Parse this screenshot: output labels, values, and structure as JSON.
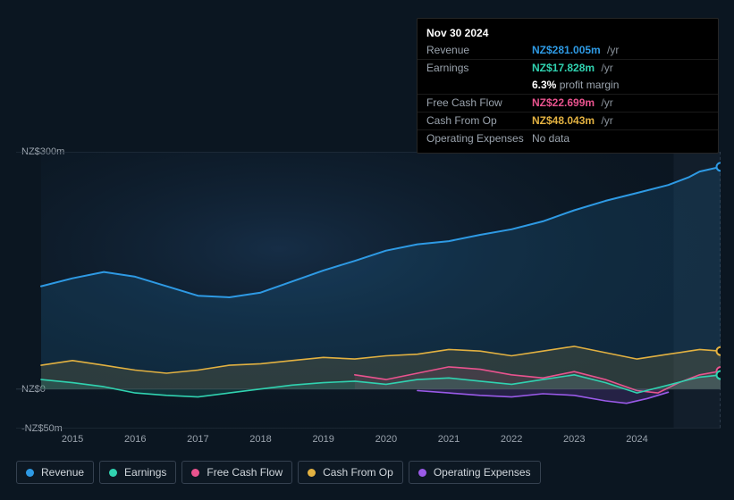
{
  "tooltip": {
    "date": "Nov 30 2024",
    "rows": [
      {
        "key": "revenue",
        "label": "Revenue",
        "value": "NZ$281.005m",
        "suffix": "/yr",
        "color": "#2e9ae4"
      },
      {
        "key": "earnings",
        "label": "Earnings",
        "value": "NZ$17.828m",
        "suffix": "/yr",
        "color": "#30d2b0",
        "sub_value": "6.3%",
        "sub_label": "profit margin"
      },
      {
        "key": "fcf",
        "label": "Free Cash Flow",
        "value": "NZ$22.699m",
        "suffix": "/yr",
        "color": "#e9538e"
      },
      {
        "key": "cfo",
        "label": "Cash From Op",
        "value": "NZ$48.043m",
        "suffix": "/yr",
        "color": "#e2b141"
      },
      {
        "key": "opex",
        "label": "Operating Expenses",
        "value": "No data",
        "suffix": "",
        "color": "#9aa3ad",
        "nodata": true
      }
    ]
  },
  "chart": {
    "type": "area",
    "background_color": "#0b1621",
    "grid_color": "#2a3644",
    "text_color": "#9aa3ad",
    "label_fontsize": 11,
    "x_ticks": [
      "2015",
      "2016",
      "2017",
      "2018",
      "2019",
      "2020",
      "2021",
      "2022",
      "2023",
      "2024"
    ],
    "y_ticks": [
      {
        "label": "NZ$300m",
        "value": 300
      },
      {
        "label": "NZ$0",
        "value": 0
      },
      {
        "label": "-NZ$50m",
        "value": -50
      }
    ],
    "ylim": [
      -50,
      300
    ],
    "xrange_months": 130,
    "future_shade_start_month": 121,
    "series": {
      "revenue": {
        "color": "#2e9ae4",
        "fill_opacity": 0.14,
        "line_width": 2,
        "data": [
          [
            0,
            130
          ],
          [
            6,
            140
          ],
          [
            12,
            148
          ],
          [
            18,
            142
          ],
          [
            24,
            130
          ],
          [
            30,
            118
          ],
          [
            36,
            116
          ],
          [
            42,
            122
          ],
          [
            48,
            136
          ],
          [
            54,
            150
          ],
          [
            60,
            162
          ],
          [
            66,
            175
          ],
          [
            72,
            183
          ],
          [
            78,
            187
          ],
          [
            84,
            195
          ],
          [
            90,
            202
          ],
          [
            96,
            212
          ],
          [
            102,
            226
          ],
          [
            108,
            238
          ],
          [
            114,
            248
          ],
          [
            120,
            258
          ],
          [
            124,
            268
          ],
          [
            126,
            275
          ],
          [
            130,
            281
          ]
        ]
      },
      "earnings": {
        "color": "#30d2b0",
        "fill_opacity": 0.14,
        "line_width": 1.6,
        "data": [
          [
            0,
            12
          ],
          [
            6,
            8
          ],
          [
            12,
            3
          ],
          [
            18,
            -5
          ],
          [
            24,
            -8
          ],
          [
            30,
            -10
          ],
          [
            36,
            -5
          ],
          [
            42,
            0
          ],
          [
            48,
            5
          ],
          [
            54,
            8
          ],
          [
            60,
            10
          ],
          [
            66,
            6
          ],
          [
            72,
            12
          ],
          [
            78,
            14
          ],
          [
            84,
            10
          ],
          [
            90,
            6
          ],
          [
            96,
            12
          ],
          [
            102,
            18
          ],
          [
            108,
            8
          ],
          [
            114,
            -5
          ],
          [
            120,
            5
          ],
          [
            124,
            12
          ],
          [
            126,
            15
          ],
          [
            130,
            17.8
          ]
        ]
      },
      "fcf": {
        "color": "#e9538e",
        "fill_opacity": 0.12,
        "line_width": 1.6,
        "start_month": 60,
        "data": [
          [
            60,
            18
          ],
          [
            66,
            12
          ],
          [
            72,
            20
          ],
          [
            78,
            28
          ],
          [
            84,
            25
          ],
          [
            90,
            18
          ],
          [
            96,
            14
          ],
          [
            102,
            22
          ],
          [
            108,
            12
          ],
          [
            114,
            -2
          ],
          [
            118,
            -5
          ],
          [
            122,
            8
          ],
          [
            126,
            18
          ],
          [
            130,
            22.7
          ]
        ]
      },
      "cfo": {
        "color": "#e2b141",
        "fill_opacity": 0.14,
        "line_width": 1.6,
        "data": [
          [
            0,
            30
          ],
          [
            6,
            36
          ],
          [
            12,
            30
          ],
          [
            18,
            24
          ],
          [
            24,
            20
          ],
          [
            30,
            24
          ],
          [
            36,
            30
          ],
          [
            42,
            32
          ],
          [
            48,
            36
          ],
          [
            54,
            40
          ],
          [
            60,
            38
          ],
          [
            66,
            42
          ],
          [
            72,
            44
          ],
          [
            78,
            50
          ],
          [
            84,
            48
          ],
          [
            90,
            42
          ],
          [
            96,
            48
          ],
          [
            102,
            54
          ],
          [
            108,
            46
          ],
          [
            114,
            38
          ],
          [
            120,
            44
          ],
          [
            124,
            48
          ],
          [
            126,
            50
          ],
          [
            130,
            48
          ]
        ]
      },
      "opex": {
        "color": "#9a5ae8",
        "fill_opacity": 0.18,
        "line_width": 1.6,
        "start_month": 72,
        "data": [
          [
            72,
            -2
          ],
          [
            78,
            -5
          ],
          [
            84,
            -8
          ],
          [
            90,
            -10
          ],
          [
            96,
            -6
          ],
          [
            102,
            -8
          ],
          [
            108,
            -15
          ],
          [
            112,
            -18
          ],
          [
            116,
            -12
          ],
          [
            120,
            -4
          ]
        ]
      }
    },
    "markers": [
      {
        "series": "revenue",
        "month": 130,
        "value": 281,
        "color": "#2e9ae4"
      },
      {
        "series": "cfo",
        "month": 130,
        "value": 48,
        "color": "#e2b141"
      },
      {
        "series": "fcf",
        "month": 130,
        "value": 22.7,
        "color": "#e9538e"
      },
      {
        "series": "earnings",
        "month": 130,
        "value": 17.8,
        "color": "#30d2b0"
      }
    ]
  },
  "legend": [
    {
      "key": "revenue",
      "label": "Revenue",
      "color": "#2e9ae4"
    },
    {
      "key": "earnings",
      "label": "Earnings",
      "color": "#30d2b0"
    },
    {
      "key": "fcf",
      "label": "Free Cash Flow",
      "color": "#e9538e"
    },
    {
      "key": "cfo",
      "label": "Cash From Op",
      "color": "#e2b141"
    },
    {
      "key": "opex",
      "label": "Operating Expenses",
      "color": "#9a5ae8"
    }
  ]
}
